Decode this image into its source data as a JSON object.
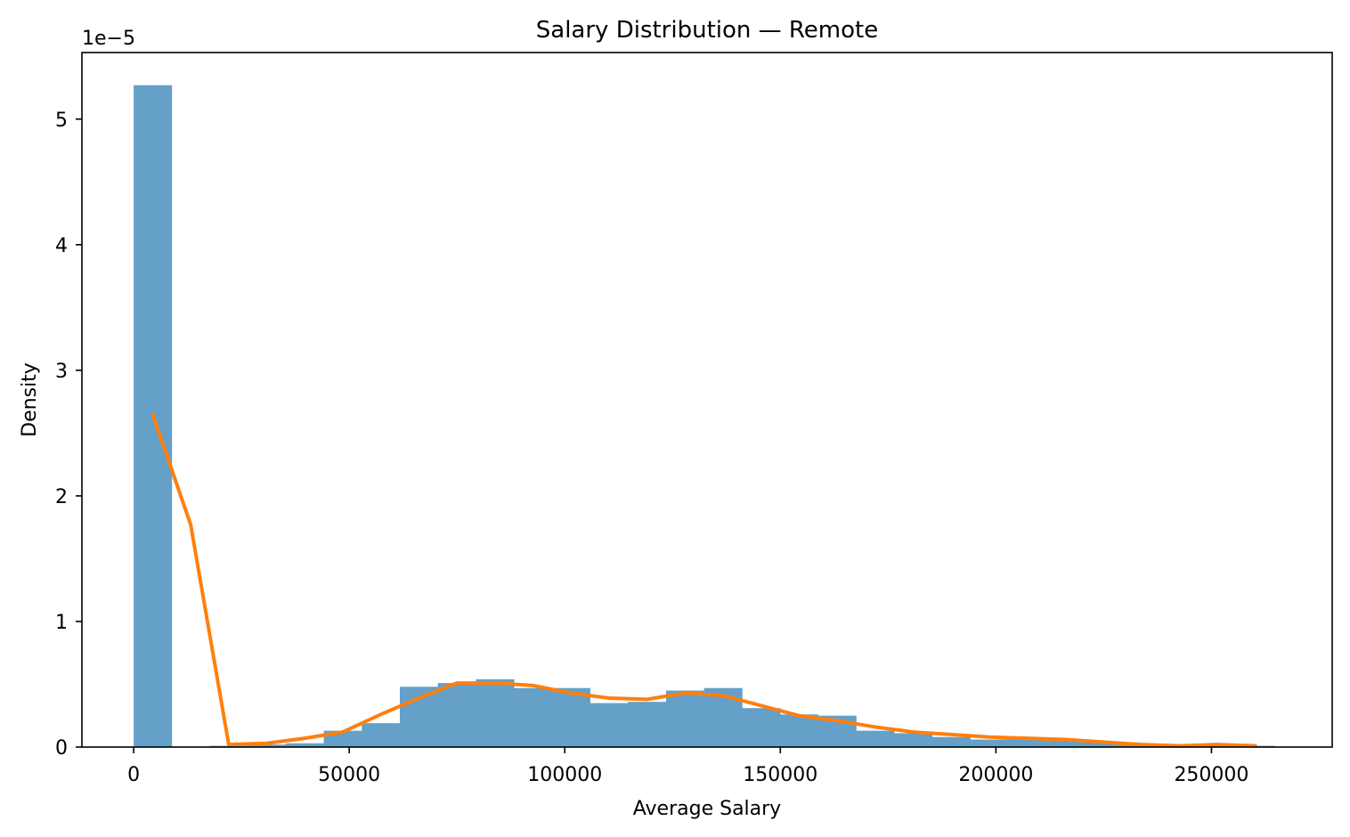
{
  "chart_data": {
    "type": "bar",
    "title": "Salary Distribution — Remote",
    "xlabel": "Average Salary",
    "ylabel": "Density",
    "y_offset_label": "1e−5",
    "xlim": [
      -12000,
      278000
    ],
    "ylim": [
      0,
      5.53
    ],
    "y_scale_note": "values in units of 1e-5",
    "grid": false,
    "legend": "none",
    "colors": {
      "histogram": "#64a0c8",
      "line": "#ff7f0e"
    },
    "x_ticks": [
      {
        "value": 0,
        "label": "0"
      },
      {
        "value": 50000,
        "label": "50000"
      },
      {
        "value": 100000,
        "label": "100000"
      },
      {
        "value": 150000,
        "label": "150000"
      },
      {
        "value": 200000,
        "label": "200000"
      },
      {
        "value": 250000,
        "label": "250000"
      }
    ],
    "y_ticks": [
      {
        "value": 0,
        "label": "0"
      },
      {
        "value": 1,
        "label": "1"
      },
      {
        "value": 2,
        "label": "2"
      },
      {
        "value": 3,
        "label": "3"
      },
      {
        "value": 4,
        "label": "4"
      },
      {
        "value": 5,
        "label": "5"
      }
    ],
    "histogram": {
      "bin_edges": [
        0,
        8820,
        17640,
        26460,
        35280,
        44100,
        52920,
        61740,
        70560,
        79380,
        88200,
        97020,
        105840,
        114660,
        123480,
        132300,
        141120,
        149940,
        158760,
        167580,
        176400,
        185220,
        194040,
        202860,
        211680,
        220500,
        229320,
        238140,
        246960,
        255780,
        264600
      ],
      "values": [
        5.27,
        0.0,
        0.01,
        0.02,
        0.03,
        0.13,
        0.19,
        0.48,
        0.51,
        0.54,
        0.47,
        0.47,
        0.35,
        0.36,
        0.45,
        0.47,
        0.31,
        0.26,
        0.25,
        0.13,
        0.11,
        0.08,
        0.06,
        0.06,
        0.05,
        0.04,
        0.02,
        0.01,
        0.01,
        0.01
      ]
    },
    "series": [
      {
        "type": "line",
        "x": [
          4410,
          13230,
          22050,
          30870,
          39690,
          48510,
          57330,
          66150,
          74970,
          83790,
          92610,
          101430,
          110250,
          119070,
          127890,
          136710,
          145530,
          154350,
          163170,
          171990,
          180810,
          189630,
          198450,
          207270,
          216090,
          224910,
          233730,
          242550,
          251370,
          260190
        ],
        "values": [
          2.65,
          1.77,
          0.02,
          0.03,
          0.07,
          0.12,
          0.26,
          0.39,
          0.51,
          0.51,
          0.49,
          0.43,
          0.39,
          0.38,
          0.43,
          0.41,
          0.33,
          0.25,
          0.21,
          0.16,
          0.12,
          0.1,
          0.08,
          0.07,
          0.06,
          0.04,
          0.02,
          0.01,
          0.02,
          0.01
        ]
      }
    ]
  }
}
